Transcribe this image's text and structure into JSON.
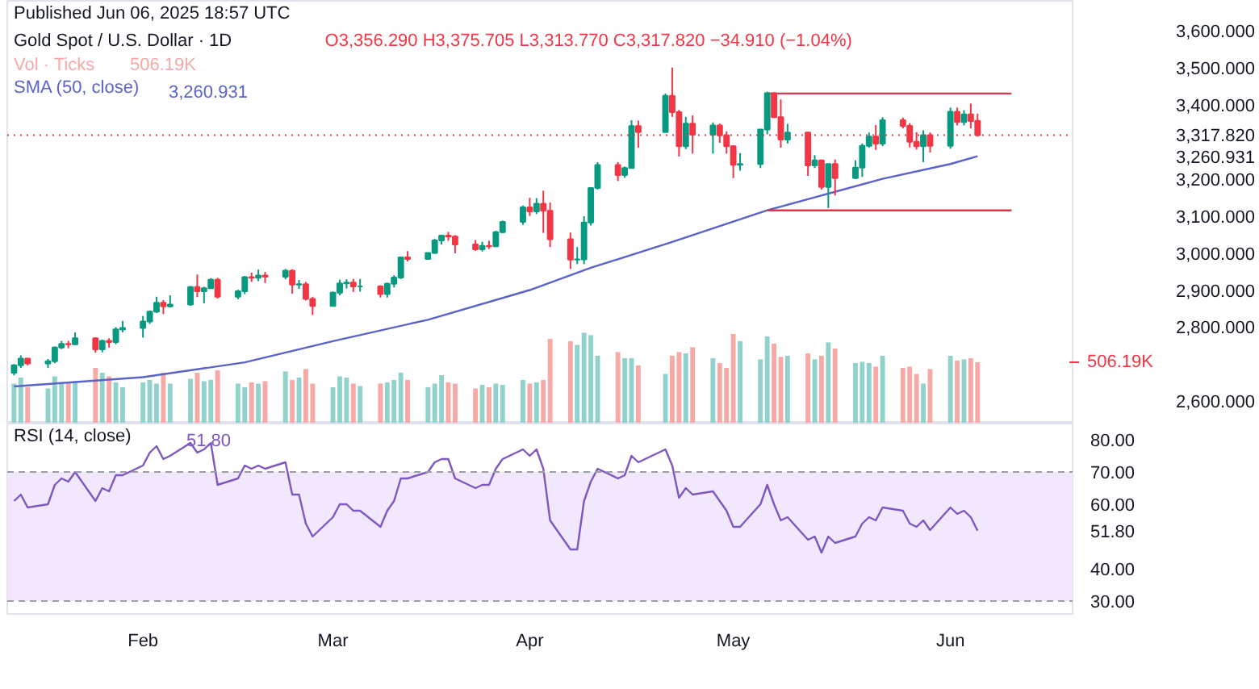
{
  "chart_data": [
    {
      "type": "candlestick",
      "subtitle": "Published Jun 06, 2025 18:57 UTC",
      "title": "Gold Spot / U.S. Dollar · 1D",
      "annotations": [
        "O3,356.290 H3,375.705 L3,313.770 C3,317.820 −34.910 (−1.04%)",
        "506.19K",
        "3,260.931"
      ],
      "x": [
        "2025-01-15",
        "2025-01-16",
        "2025-01-17",
        "2025-01-20",
        "2025-01-21",
        "2025-01-22",
        "2025-01-23",
        "2025-01-24",
        "2025-01-27",
        "2025-01-28",
        "2025-01-29",
        "2025-01-30",
        "2025-01-31",
        "2025-02-03",
        "2025-02-04",
        "2025-02-05",
        "2025-02-06",
        "2025-02-07",
        "2025-02-10",
        "2025-02-11",
        "2025-02-12",
        "2025-02-13",
        "2025-02-14",
        "2025-02-17",
        "2025-02-18",
        "2025-02-19",
        "2025-02-20",
        "2025-02-21",
        "2025-02-24",
        "2025-02-25",
        "2025-02-26",
        "2025-02-27",
        "2025-02-28",
        "2025-03-03",
        "2025-03-04",
        "2025-03-05",
        "2025-03-06",
        "2025-03-07",
        "2025-03-10",
        "2025-03-11",
        "2025-03-12",
        "2025-03-13",
        "2025-03-14",
        "2025-03-17",
        "2025-03-18",
        "2025-03-19",
        "2025-03-20",
        "2025-03-21",
        "2025-03-24",
        "2025-03-25",
        "2025-03-26",
        "2025-03-27",
        "2025-03-28",
        "2025-03-31",
        "2025-04-01",
        "2025-04-02",
        "2025-04-03",
        "2025-04-04",
        "2025-04-07",
        "2025-04-08",
        "2025-04-09",
        "2025-04-10",
        "2025-04-11",
        "2025-04-14",
        "2025-04-15",
        "2025-04-16",
        "2025-04-17",
        "2025-04-21",
        "2025-04-22",
        "2025-04-23",
        "2025-04-24",
        "2025-04-25",
        "2025-04-28",
        "2025-04-29",
        "2025-04-30",
        "2025-05-01",
        "2025-05-02",
        "2025-05-05",
        "2025-05-06",
        "2025-05-07",
        "2025-05-08",
        "2025-05-09",
        "2025-05-12",
        "2025-05-13",
        "2025-05-14",
        "2025-05-15",
        "2025-05-16",
        "2025-05-19",
        "2025-05-20",
        "2025-05-21",
        "2025-05-22",
        "2025-05-23",
        "2025-05-26",
        "2025-05-27",
        "2025-05-28",
        "2025-05-29",
        "2025-05-30",
        "2025-06-02",
        "2025-06-03",
        "2025-06-04",
        "2025-06-05",
        "2025-06-06"
      ],
      "ohlc": [
        [
          2677,
          2700,
          2670,
          2697
        ],
        [
          2697,
          2724,
          2690,
          2715
        ],
        [
          2715,
          2717,
          2697,
          2702
        ],
        [
          2702,
          2714,
          2690,
          2708
        ],
        [
          2708,
          2748,
          2703,
          2745
        ],
        [
          2745,
          2763,
          2741,
          2755
        ],
        [
          2755,
          2763,
          2743,
          2754
        ],
        [
          2754,
          2786,
          2752,
          2770
        ],
        [
          2770,
          2772,
          2731,
          2740
        ],
        [
          2740,
          2766,
          2732,
          2763
        ],
        [
          2763,
          2770,
          2745,
          2760
        ],
        [
          2760,
          2800,
          2754,
          2794
        ],
        [
          2794,
          2817,
          2786,
          2798
        ],
        [
          2798,
          2830,
          2772,
          2815
        ],
        [
          2815,
          2845,
          2809,
          2842
        ],
        [
          2842,
          2882,
          2838,
          2866
        ],
        [
          2866,
          2873,
          2835,
          2856
        ],
        [
          2856,
          2886,
          2853,
          2861
        ],
        [
          2861,
          2911,
          2858,
          2908
        ],
        [
          2908,
          2942,
          2881,
          2897
        ],
        [
          2897,
          2909,
          2864,
          2905
        ],
        [
          2905,
          2932,
          2903,
          2928
        ],
        [
          2928,
          2933,
          2877,
          2882
        ],
        [
          2882,
          2901,
          2875,
          2897
        ],
        [
          2897,
          2938,
          2889,
          2935
        ],
        [
          2935,
          2947,
          2922,
          2933
        ],
        [
          2933,
          2955,
          2924,
          2939
        ],
        [
          2939,
          2949,
          2919,
          2936
        ],
        [
          2936,
          2957,
          2929,
          2952
        ],
        [
          2952,
          2956,
          2890,
          2915
        ],
        [
          2915,
          2927,
          2903,
          2916
        ],
        [
          2916,
          2922,
          2872,
          2876
        ],
        [
          2876,
          2882,
          2833,
          2857
        ],
        [
          2857,
          2896,
          2857,
          2893
        ],
        [
          2893,
          2928,
          2886,
          2918
        ],
        [
          2918,
          2929,
          2904,
          2920
        ],
        [
          2920,
          2930,
          2895,
          2910
        ],
        [
          2910,
          2930,
          2896,
          2910
        ],
        [
          2910,
          2913,
          2880,
          2889
        ],
        [
          2889,
          2920,
          2880,
          2917
        ],
        [
          2917,
          2940,
          2907,
          2934
        ],
        [
          2934,
          2990,
          2930,
          2988
        ],
        [
          2988,
          3005,
          2977,
          2984
        ],
        [
          2984,
          3001,
          2982,
          3000
        ],
        [
          3000,
          3038,
          2998,
          3034
        ],
        [
          3034,
          3049,
          3023,
          3047
        ],
        [
          3047,
          3057,
          3033,
          3044
        ],
        [
          3044,
          3048,
          2999,
          3023
        ],
        [
          3023,
          3035,
          3006,
          3010
        ],
        [
          3010,
          3030,
          3004,
          3019
        ],
        [
          3019,
          3033,
          3011,
          3018
        ],
        [
          3018,
          3060,
          3016,
          3056
        ],
        [
          3056,
          3087,
          3053,
          3084
        ],
        [
          3084,
          3128,
          3076,
          3123
        ],
        [
          3123,
          3149,
          3100,
          3112
        ],
        [
          3112,
          3148,
          3105,
          3133
        ],
        [
          3133,
          3168,
          3054,
          3114
        ],
        [
          3114,
          3136,
          3016,
          3037
        ],
        [
          3037,
          3055,
          2957,
          2982
        ],
        [
          2982,
          3016,
          2970,
          2983
        ],
        [
          2983,
          3099,
          2970,
          3082
        ],
        [
          3082,
          3176,
          3074,
          3175
        ],
        [
          3175,
          3245,
          3171,
          3237
        ],
        [
          3237,
          3245,
          3194,
          3210
        ],
        [
          3210,
          3233,
          3203,
          3229
        ],
        [
          3229,
          3358,
          3228,
          3342
        ],
        [
          3342,
          3357,
          3284,
          3326
        ],
        [
          3326,
          3430,
          3325,
          3424
        ],
        [
          3424,
          3500,
          3367,
          3380
        ],
        [
          3380,
          3386,
          3260,
          3288
        ],
        [
          3288,
          3367,
          3280,
          3349
        ],
        [
          3349,
          3371,
          3268,
          3319
        ],
        [
          3319,
          3352,
          3268,
          3344
        ],
        [
          3344,
          3349,
          3297,
          3317
        ],
        [
          3317,
          3328,
          3268,
          3288
        ],
        [
          3288,
          3290,
          3202,
          3238
        ],
        [
          3238,
          3269,
          3222,
          3240
        ],
        [
          3240,
          3334,
          3229,
          3333
        ],
        [
          3333,
          3435,
          3320,
          3431
        ],
        [
          3431,
          3433,
          3364,
          3366
        ],
        [
          3366,
          3414,
          3284,
          3306
        ],
        [
          3306,
          3348,
          3295,
          3325
        ],
        [
          3325,
          3326,
          3208,
          3236
        ],
        [
          3236,
          3264,
          3229,
          3250
        ],
        [
          3250,
          3251,
          3171,
          3178
        ],
        [
          3178,
          3241,
          3121,
          3240
        ],
        [
          3240,
          3252,
          3155,
          3202
        ],
        [
          3202,
          3250,
          3200,
          3230
        ],
        [
          3230,
          3295,
          3205,
          3289
        ],
        [
          3289,
          3325,
          3284,
          3314
        ],
        [
          3314,
          3345,
          3278,
          3295
        ],
        [
          3295,
          3366,
          3288,
          3358
        ],
        [
          3358,
          3365,
          3336,
          3343
        ],
        [
          3343,
          3350,
          3285,
          3300
        ],
        [
          3300,
          3326,
          3279,
          3288
        ],
        [
          3288,
          3331,
          3245,
          3318
        ],
        [
          3318,
          3325,
          3271,
          3289
        ],
        [
          3289,
          3392,
          3281,
          3381
        ],
        [
          3381,
          3392,
          3344,
          3353
        ],
        [
          3353,
          3385,
          3344,
          3374
        ],
        [
          3374,
          3403,
          3336,
          3356
        ],
        [
          3356.29,
          3375.705,
          3313.77,
          3317.82
        ]
      ],
      "colors": [
        "#089981",
        "#089981",
        "#f23645",
        "#089981",
        "#089981",
        "#089981",
        "#f23645",
        "#089981",
        "#f23645",
        "#089981",
        "#f23645",
        "#089981",
        "#089981",
        "#089981",
        "#089981",
        "#089981",
        "#f23645",
        "#089981",
        "#089981",
        "#f23645",
        "#089981",
        "#089981",
        "#f23645",
        "#089981",
        "#089981",
        "#f23645",
        "#089981",
        "#f23645",
        "#089981",
        "#f23645",
        "#089981",
        "#f23645",
        "#f23645",
        "#089981",
        "#089981",
        "#089981",
        "#f23645",
        "#089981",
        "#f23645",
        "#089981",
        "#089981",
        "#089981",
        "#f23645",
        "#089981",
        "#089981",
        "#089981",
        "#f23645",
        "#f23645",
        "#f23645",
        "#089981",
        "#f23645",
        "#089981",
        "#089981",
        "#089981",
        "#f23645",
        "#089981",
        "#f23645",
        "#f23645",
        "#f23645",
        "#089981",
        "#089981",
        "#089981",
        "#089981",
        "#f23645",
        "#089981",
        "#089981",
        "#f23645",
        "#089981",
        "#f23645",
        "#f23645",
        "#089981",
        "#f23645",
        "#089981",
        "#f23645",
        "#f23645",
        "#f23645",
        "#089981",
        "#089981",
        "#089981",
        "#f23645",
        "#f23645",
        "#089981",
        "#f23645",
        "#089981",
        "#f23645",
        "#089981",
        "#f23645",
        "#089981",
        "#089981",
        "#089981",
        "#f23645",
        "#089981",
        "#f23645",
        "#f23645",
        "#f23645",
        "#089981",
        "#f23645",
        "#089981",
        "#f23645",
        "#089981",
        "#f23645",
        "#f23645"
      ],
      "series": [
        {
          "name": "Vol · Ticks",
          "type": "bar",
          "axis": "y2",
          "colors": [
            "#92d2cc",
            "#92d2cc",
            "#f7a9a7",
            "#92d2cc",
            "#92d2cc",
            "#92d2cc",
            "#f7a9a7",
            "#92d2cc",
            "#f7a9a7",
            "#92d2cc",
            "#f7a9a7",
            "#92d2cc",
            "#92d2cc",
            "#92d2cc",
            "#92d2cc",
            "#92d2cc",
            "#f7a9a7",
            "#92d2cc",
            "#92d2cc",
            "#f7a9a7",
            "#92d2cc",
            "#92d2cc",
            "#f7a9a7",
            "#92d2cc",
            "#92d2cc",
            "#f7a9a7",
            "#92d2cc",
            "#f7a9a7",
            "#92d2cc",
            "#f7a9a7",
            "#92d2cc",
            "#f7a9a7",
            "#f7a9a7",
            "#92d2cc",
            "#92d2cc",
            "#92d2cc",
            "#f7a9a7",
            "#92d2cc",
            "#f7a9a7",
            "#92d2cc",
            "#92d2cc",
            "#92d2cc",
            "#f7a9a7",
            "#92d2cc",
            "#92d2cc",
            "#92d2cc",
            "#f7a9a7",
            "#f7a9a7",
            "#f7a9a7",
            "#92d2cc",
            "#f7a9a7",
            "#92d2cc",
            "#92d2cc",
            "#92d2cc",
            "#f7a9a7",
            "#92d2cc",
            "#f7a9a7",
            "#f7a9a7",
            "#f7a9a7",
            "#92d2cc",
            "#92d2cc",
            "#92d2cc",
            "#92d2cc",
            "#f7a9a7",
            "#92d2cc",
            "#92d2cc",
            "#f7a9a7",
            "#92d2cc",
            "#f7a9a7",
            "#f7a9a7",
            "#92d2cc",
            "#f7a9a7",
            "#92d2cc",
            "#f7a9a7",
            "#f7a9a7",
            "#f7a9a7",
            "#92d2cc",
            "#92d2cc",
            "#92d2cc",
            "#f7a9a7",
            "#f7a9a7",
            "#92d2cc",
            "#f7a9a7",
            "#92d2cc",
            "#f7a9a7",
            "#92d2cc",
            "#f7a9a7",
            "#92d2cc",
            "#92d2cc",
            "#92d2cc",
            "#f7a9a7",
            "#92d2cc",
            "#f7a9a7",
            "#f7a9a7",
            "#f7a9a7",
            "#92d2cc",
            "#f7a9a7",
            "#92d2cc",
            "#f7a9a7",
            "#92d2cc",
            "#f7a9a7",
            "#f7a9a7"
          ],
          "values": [
            330,
            380,
            300,
            290,
            390,
            330,
            340,
            350,
            460,
            420,
            390,
            340,
            300,
            340,
            360,
            330,
            420,
            330,
            370,
            420,
            350,
            360,
            440,
            330,
            300,
            340,
            330,
            350,
            430,
            360,
            380,
            450,
            330,
            300,
            390,
            380,
            330,
            310,
            330,
            340,
            360,
            420,
            360,
            300,
            330,
            400,
            340,
            330,
            290,
            320,
            300,
            330,
            320,
            360,
            330,
            340,
            360,
            700,
            680,
            650,
            750,
            730,
            560,
            590,
            540,
            540,
            480,
            410,
            560,
            590,
            580,
            630,
            540,
            500,
            460,
            740,
            680,
            530,
            720,
            660,
            550,
            560,
            580,
            530,
            560,
            670,
            620,
            500,
            510,
            500,
            470,
            560,
            460,
            470,
            410,
            330,
            450,
            560,
            520,
            530,
            540,
            506.19
          ]
        },
        {
          "name": "SMA (50, close)",
          "type": "line",
          "color": "#5b63c9",
          "x": [
            "2025-01-15",
            "2025-02-03",
            "2025-02-18",
            "2025-03-03",
            "2025-03-17",
            "2025-04-01",
            "2025-04-10",
            "2025-04-22",
            "2025-05-06",
            "2025-05-15",
            "2025-05-23",
            "2025-06-02",
            "2025-06-06"
          ],
          "values": [
            2640,
            2665,
            2705,
            2762,
            2820,
            2900,
            2960,
            3030,
            3115,
            3160,
            3200,
            3240,
            3260.931
          ]
        },
        {
          "type": "line",
          "color": "#e0344d",
          "x": [
            "2025-05-06",
            "2025-06-11"
          ],
          "values": [
            3430,
            3430
          ]
        },
        {
          "type": "line",
          "color": "#e0344d",
          "x": [
            "2025-05-06",
            "2025-06-11"
          ],
          "values": [
            3115,
            3115
          ]
        }
      ],
      "ref_lines": [
        {
          "axis": "y",
          "value": 3317.82,
          "color": "#f23645",
          "line_style": "dotted"
        }
      ],
      "xlim": [
        "2025-01-14",
        "2025-06-20"
      ],
      "ylim": [
        2540,
        3680
      ],
      "yticks": [
        {
          "value": 2600,
          "label": "2,600.000"
        },
        {
          "value": 2800,
          "label": "2,800.000"
        },
        {
          "value": 2900,
          "label": "2,900.000"
        },
        {
          "value": 3000,
          "label": "3,000.000"
        },
        {
          "value": 3100,
          "label": "3,100.000"
        },
        {
          "value": 3200,
          "label": "3,200.000"
        },
        {
          "value": 3260.931,
          "label": "3,260.931"
        },
        {
          "value": 3317.82,
          "label": "3,317.820"
        },
        {
          "value": 3400,
          "label": "3,400.000"
        },
        {
          "value": 3500,
          "label": "3,500.000"
        },
        {
          "value": 3600,
          "label": "3,600.000"
        }
      ],
      "y2lim": [
        0,
        3490
      ],
      "y2ticks": [
        {
          "value": 506.19,
          "label": "506.19K"
        }
      ],
      "tick_labels": "y",
      "legend": "top left"
    },
    {
      "type": "line",
      "title": "RSI (14, close)",
      "annotations": [
        "51.80"
      ],
      "series": [
        {
          "color": "#7e57c2",
          "x": [
            "2025-01-15",
            "2025-01-16",
            "2025-01-17",
            "2025-01-20",
            "2025-01-21",
            "2025-01-22",
            "2025-01-23",
            "2025-01-24",
            "2025-01-27",
            "2025-01-28",
            "2025-01-29",
            "2025-01-30",
            "2025-01-31",
            "2025-02-03",
            "2025-02-04",
            "2025-02-05",
            "2025-02-06",
            "2025-02-07",
            "2025-02-10",
            "2025-02-11",
            "2025-02-12",
            "2025-02-13",
            "2025-02-14",
            "2025-02-17",
            "2025-02-18",
            "2025-02-19",
            "2025-02-20",
            "2025-02-21",
            "2025-02-24",
            "2025-02-25",
            "2025-02-26",
            "2025-02-27",
            "2025-02-28",
            "2025-03-03",
            "2025-03-04",
            "2025-03-05",
            "2025-03-06",
            "2025-03-07",
            "2025-03-10",
            "2025-03-11",
            "2025-03-12",
            "2025-03-13",
            "2025-03-14",
            "2025-03-17",
            "2025-03-18",
            "2025-03-19",
            "2025-03-20",
            "2025-03-21",
            "2025-03-24",
            "2025-03-25",
            "2025-03-26",
            "2025-03-27",
            "2025-03-28",
            "2025-03-31",
            "2025-04-01",
            "2025-04-02",
            "2025-04-03",
            "2025-04-04",
            "2025-04-07",
            "2025-04-08",
            "2025-04-09",
            "2025-04-10",
            "2025-04-11",
            "2025-04-14",
            "2025-04-15",
            "2025-04-16",
            "2025-04-17",
            "2025-04-21",
            "2025-04-22",
            "2025-04-23",
            "2025-04-24",
            "2025-04-25",
            "2025-04-28",
            "2025-04-29",
            "2025-04-30",
            "2025-05-01",
            "2025-05-02",
            "2025-05-05",
            "2025-05-06",
            "2025-05-07",
            "2025-05-08",
            "2025-05-09",
            "2025-05-12",
            "2025-05-13",
            "2025-05-14",
            "2025-05-15",
            "2025-05-16",
            "2025-05-19",
            "2025-05-20",
            "2025-05-21",
            "2025-05-22",
            "2025-05-23",
            "2025-05-26",
            "2025-05-27",
            "2025-05-28",
            "2025-05-29",
            "2025-05-30",
            "2025-06-02",
            "2025-06-03",
            "2025-06-04",
            "2025-06-05",
            "2025-06-06"
          ],
          "values": [
            61,
            63,
            59,
            60,
            66,
            68,
            67,
            70,
            61,
            65,
            64,
            69,
            69,
            72,
            76,
            78,
            74,
            75,
            79,
            76,
            77,
            79,
            66,
            68,
            72,
            71,
            72,
            71,
            73,
            63,
            63,
            54,
            50,
            56,
            60,
            60,
            58,
            58,
            53,
            58,
            61,
            68,
            68,
            70,
            73,
            74,
            74,
            68,
            65,
            66,
            66,
            71,
            74,
            77,
            75,
            77,
            71,
            55,
            46,
            46,
            61,
            67,
            71,
            68,
            69,
            75,
            73,
            77,
            72,
            62,
            65,
            63,
            64,
            61,
            58,
            53,
            53,
            60,
            66,
            60,
            55,
            56,
            49,
            50,
            45,
            50,
            48,
            50,
            54,
            56,
            55,
            59,
            58,
            54,
            53,
            55,
            52,
            59,
            57,
            58,
            56,
            51.8
          ]
        }
      ],
      "bands": [
        {
          "axis": "y",
          "from": 30,
          "to": 70,
          "color": "#f1e8fd"
        }
      ],
      "ref_lines": [
        {
          "axis": "y",
          "value": 70,
          "color": "#9e9ea8",
          "line_style": "dashed"
        },
        {
          "axis": "y",
          "value": 30,
          "color": "#9e9ea8",
          "line_style": "dashed"
        }
      ],
      "xlim": [
        "2025-01-14",
        "2025-06-20"
      ],
      "ylim": [
        26,
        85
      ],
      "xticks": [
        {
          "value": "2025-02-03",
          "label": "Feb"
        },
        {
          "value": "2025-03-03",
          "label": "Mar"
        },
        {
          "value": "2025-04-01",
          "label": "Apr"
        },
        {
          "value": "2025-05-01",
          "label": "May"
        },
        {
          "value": "2025-06-02",
          "label": "Jun"
        }
      ],
      "yticks": [
        {
          "value": 30,
          "label": "30.00"
        },
        {
          "value": 40,
          "label": "40.00"
        },
        {
          "value": 51.8,
          "label": "51.80"
        },
        {
          "value": 60,
          "label": "60.00"
        },
        {
          "value": 70,
          "label": "70.00"
        },
        {
          "value": 80,
          "label": "80.00"
        }
      ]
    }
  ]
}
